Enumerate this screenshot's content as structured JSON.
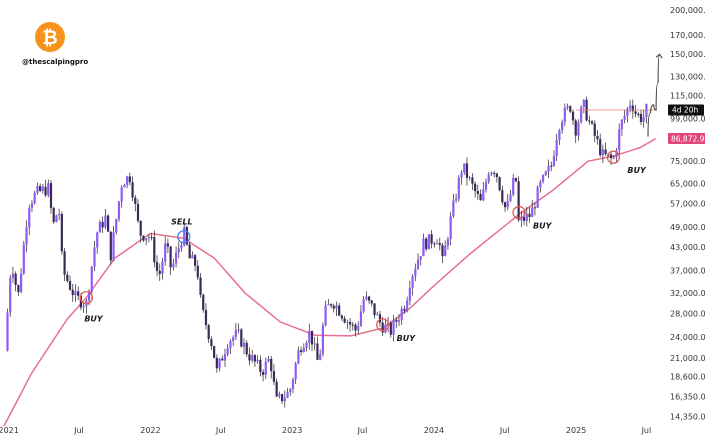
{
  "brand": {
    "handle": "@thescalpingpro",
    "logo_color": "#f7931a",
    "logo_glyph": "₿"
  },
  "colors": {
    "candle": "#8b5cf6",
    "wick": "#222222",
    "ma": "#e8708a",
    "countdown_tag": "#111111",
    "ma_tag": "#e0457b",
    "buy_circle": "#e05a5a",
    "sell_circle": "#3b82f6",
    "projection": "#333333"
  },
  "price_tags": {
    "countdown": "4d 20h",
    "ma_value": "86,872.9",
    "countdown_price": 104500,
    "ma_price": 86872.9
  },
  "chart_data": {
    "type": "candlestick",
    "title": "",
    "xlabel": "",
    "ylabel": "",
    "y_scale": "log",
    "ylim": [
      13500,
      205000
    ],
    "x_range": [
      "2020-12-20",
      "2025-08-05"
    ],
    "y_ticks": [
      {
        "value": 200000,
        "label": "200,000.0"
      },
      {
        "value": 170000,
        "label": "170,000.0"
      },
      {
        "value": 150000,
        "label": "150,000.0"
      },
      {
        "value": 130000,
        "label": "130,000.0"
      },
      {
        "value": 115000,
        "label": "115,000.0"
      },
      {
        "value": 99000,
        "label": "99,000.0"
      },
      {
        "value": 75000,
        "label": "75,000.0"
      },
      {
        "value": 65000,
        "label": "65,000.0"
      },
      {
        "value": 57000,
        "label": "57,000.0"
      },
      {
        "value": 49000,
        "label": "49,000.0"
      },
      {
        "value": 43000,
        "label": "43,000.0"
      },
      {
        "value": 37000,
        "label": "37,000.0"
      },
      {
        "value": 32000,
        "label": "32,000.0"
      },
      {
        "value": 28000,
        "label": "28,000.0"
      },
      {
        "value": 24000,
        "label": "24,000.0"
      },
      {
        "value": 21000,
        "label": "21,000.0"
      },
      {
        "value": 18600,
        "label": "18,600.0"
      },
      {
        "value": 16350,
        "label": "16,350.0"
      },
      {
        "value": 14350,
        "label": "14,350.0"
      }
    ],
    "x_ticks": [
      {
        "date": "2021-01-01",
        "label": "2021"
      },
      {
        "date": "2021-07-01",
        "label": "Jul"
      },
      {
        "date": "2022-01-01",
        "label": "2022"
      },
      {
        "date": "2022-07-01",
        "label": "Jul"
      },
      {
        "date": "2023-01-01",
        "label": "2023"
      },
      {
        "date": "2023-07-01",
        "label": "Jul"
      },
      {
        "date": "2024-01-01",
        "label": "2024"
      },
      {
        "date": "2024-07-01",
        "label": "Jul"
      },
      {
        "date": "2025-01-01",
        "label": "2025"
      },
      {
        "date": "2025-07-01",
        "label": "Jul"
      }
    ],
    "price_path": [
      [
        "2020-12-22",
        22000
      ],
      [
        "2021-01-08",
        40000
      ],
      [
        "2021-01-25",
        31000
      ],
      [
        "2021-02-21",
        57000
      ],
      [
        "2021-03-13",
        61000
      ],
      [
        "2021-04-14",
        63000
      ],
      [
        "2021-04-25",
        49000
      ],
      [
        "2021-05-10",
        56000
      ],
      [
        "2021-05-20",
        37000
      ],
      [
        "2021-06-22",
        31000
      ],
      [
        "2021-07-20",
        29800
      ],
      [
        "2021-08-15",
        47000
      ],
      [
        "2021-09-07",
        52000
      ],
      [
        "2021-09-21",
        41000
      ],
      [
        "2021-10-20",
        66000
      ],
      [
        "2021-11-10",
        68000
      ],
      [
        "2021-12-04",
        47000
      ],
      [
        "2022-01-01",
        46000
      ],
      [
        "2022-01-22",
        35000
      ],
      [
        "2022-02-10",
        44000
      ],
      [
        "2022-02-24",
        37000
      ],
      [
        "2022-03-28",
        47500
      ],
      [
        "2022-04-11",
        40000
      ],
      [
        "2022-05-01",
        38000
      ],
      [
        "2022-05-12",
        29000
      ],
      [
        "2022-06-13",
        22000
      ],
      [
        "2022-06-18",
        18800
      ],
      [
        "2022-07-20",
        23500
      ],
      [
        "2022-08-14",
        24500
      ],
      [
        "2022-09-10",
        21500
      ],
      [
        "2022-10-15",
        19200
      ],
      [
        "2022-11-05",
        21000
      ],
      [
        "2022-11-21",
        15800
      ],
      [
        "2022-12-25",
        16800
      ],
      [
        "2023-01-20",
        22500
      ],
      [
        "2023-02-16",
        24800
      ],
      [
        "2023-03-10",
        20000
      ],
      [
        "2023-03-25",
        28000
      ],
      [
        "2023-04-14",
        30500
      ],
      [
        "2023-05-25",
        26500
      ],
      [
        "2023-06-15",
        25000
      ],
      [
        "2023-07-05",
        31000
      ],
      [
        "2023-07-25",
        29200
      ],
      [
        "2023-08-18",
        26000
      ],
      [
        "2023-09-12",
        25000
      ],
      [
        "2023-10-20",
        30000
      ],
      [
        "2023-11-01",
        35000
      ],
      [
        "2023-12-05",
        44000
      ],
      [
        "2024-01-12",
        46000
      ],
      [
        "2024-01-23",
        39000
      ],
      [
        "2024-02-14",
        52000
      ],
      [
        "2024-03-14",
        73000
      ],
      [
        "2024-04-02",
        66000
      ],
      [
        "2024-05-01",
        57000
      ],
      [
        "2024-05-21",
        71000
      ],
      [
        "2024-06-07",
        71500
      ],
      [
        "2024-07-05",
        54000
      ],
      [
        "2024-07-29",
        69000
      ],
      [
        "2024-08-05",
        50500
      ],
      [
        "2024-09-06",
        53000
      ],
      [
        "2024-10-01",
        64000
      ],
      [
        "2024-10-29",
        73000
      ],
      [
        "2024-11-12",
        89000
      ],
      [
        "2024-11-22",
        99000
      ],
      [
        "2024-12-05",
        103000
      ],
      [
        "2024-12-17",
        107000
      ],
      [
        "2024-12-30",
        92000
      ],
      [
        "2025-01-20",
        108000
      ],
      [
        "2025-02-03",
        97000
      ],
      [
        "2025-02-26",
        84000
      ],
      [
        "2025-03-10",
        78000
      ],
      [
        "2025-04-07",
        75500
      ],
      [
        "2025-04-25",
        94000
      ],
      [
        "2025-05-22",
        111000
      ],
      [
        "2025-06-05",
        101500
      ],
      [
        "2025-06-22",
        99000
      ],
      [
        "2025-07-06",
        108000
      ]
    ],
    "moving_average": [
      [
        "2020-12-20",
        13500
      ],
      [
        "2021-03-01",
        19000
      ],
      [
        "2021-06-01",
        27000
      ],
      [
        "2021-07-20",
        31000
      ],
      [
        "2021-10-01",
        40000
      ],
      [
        "2022-01-01",
        47000
      ],
      [
        "2022-03-28",
        45500
      ],
      [
        "2022-06-15",
        40000
      ],
      [
        "2022-09-01",
        32000
      ],
      [
        "2022-12-01",
        26500
      ],
      [
        "2023-03-01",
        24300
      ],
      [
        "2023-06-01",
        24200
      ],
      [
        "2023-08-25",
        25500
      ],
      [
        "2023-11-01",
        29000
      ],
      [
        "2024-01-01",
        33500
      ],
      [
        "2024-04-01",
        41000
      ],
      [
        "2024-08-10",
        53500
      ],
      [
        "2024-11-01",
        62000
      ],
      [
        "2025-02-01",
        75000
      ],
      [
        "2025-04-07",
        77500
      ],
      [
        "2025-06-15",
        82000
      ],
      [
        "2025-07-25",
        86872.9
      ]
    ],
    "annotations": [
      {
        "label": "BUY",
        "date": "2021-07-20",
        "price": 31000,
        "circle": "buy"
      },
      {
        "label": "SELL",
        "date": "2022-03-28",
        "price": 46000,
        "circle": "sell"
      },
      {
        "label": "BUY",
        "date": "2023-08-22",
        "price": 26000,
        "circle": "buy"
      },
      {
        "label": "BUY",
        "date": "2024-08-07",
        "price": 53800,
        "circle": "buy"
      },
      {
        "label": "BUY",
        "date": "2025-04-07",
        "price": 77000,
        "circle": "buy"
      }
    ],
    "horizontal_line": {
      "price": 104500,
      "from": "2025-01-01",
      "to": "2025-07-28"
    },
    "projection": [
      [
        "2025-07-05",
        88000
      ],
      [
        "2025-07-12",
        103000
      ],
      [
        "2025-07-20",
        108000
      ],
      [
        "2025-07-26",
        104500
      ],
      [
        "2025-07-31",
        125000
      ],
      [
        "2025-08-04",
        150000
      ]
    ]
  }
}
